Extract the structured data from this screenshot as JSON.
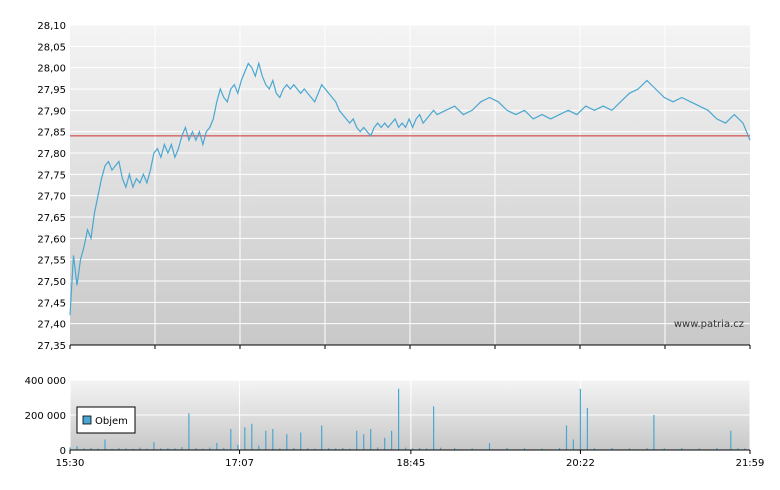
{
  "watermark": "www.patria.cz",
  "colors": {
    "price_line": "#4aa7d1",
    "reference_line": "#cc3333",
    "volume_bar": "#4aa7d1",
    "grid": "#ffffff",
    "plot_bg_top": "#f2f2f2",
    "plot_bg_bottom": "#c9c9c9",
    "axis": "#000000"
  },
  "chart_data": [
    {
      "type": "line",
      "name": "price",
      "ylim": [
        27.35,
        28.1
      ],
      "y_ticks": [
        "28,10",
        "28,05",
        "28,00",
        "27,95",
        "27,90",
        "27,85",
        "27,80",
        "27,75",
        "27,70",
        "27,65",
        "27,60",
        "27,55",
        "27,50",
        "27,45",
        "27,40",
        "27,35"
      ],
      "y_tick_values": [
        28.1,
        28.05,
        28.0,
        27.95,
        27.9,
        27.85,
        27.8,
        27.75,
        27.7,
        27.65,
        27.6,
        27.55,
        27.5,
        27.45,
        27.4,
        27.35
      ],
      "x_range": [
        "15:30",
        "21:59"
      ],
      "reference_value": 27.84,
      "grid": true,
      "points": [
        [
          "15:30",
          27.42
        ],
        [
          "15:32",
          27.56
        ],
        [
          "15:34",
          27.49
        ],
        [
          "15:36",
          27.55
        ],
        [
          "15:38",
          27.58
        ],
        [
          "15:40",
          27.62
        ],
        [
          "15:42",
          27.6
        ],
        [
          "15:44",
          27.66
        ],
        [
          "15:46",
          27.7
        ],
        [
          "15:48",
          27.74
        ],
        [
          "15:50",
          27.77
        ],
        [
          "15:52",
          27.78
        ],
        [
          "15:54",
          27.76
        ],
        [
          "15:56",
          27.77
        ],
        [
          "15:58",
          27.78
        ],
        [
          "16:00",
          27.74
        ],
        [
          "16:02",
          27.72
        ],
        [
          "16:04",
          27.75
        ],
        [
          "16:06",
          27.72
        ],
        [
          "16:08",
          27.74
        ],
        [
          "16:10",
          27.73
        ],
        [
          "16:12",
          27.75
        ],
        [
          "16:14",
          27.73
        ],
        [
          "16:16",
          27.76
        ],
        [
          "16:18",
          27.8
        ],
        [
          "16:20",
          27.81
        ],
        [
          "16:22",
          27.79
        ],
        [
          "16:24",
          27.82
        ],
        [
          "16:26",
          27.8
        ],
        [
          "16:28",
          27.82
        ],
        [
          "16:30",
          27.79
        ],
        [
          "16:32",
          27.81
        ],
        [
          "16:34",
          27.84
        ],
        [
          "16:36",
          27.86
        ],
        [
          "16:38",
          27.83
        ],
        [
          "16:40",
          27.85
        ],
        [
          "16:42",
          27.83
        ],
        [
          "16:44",
          27.85
        ],
        [
          "16:46",
          27.82
        ],
        [
          "16:48",
          27.85
        ],
        [
          "16:50",
          27.86
        ],
        [
          "16:52",
          27.88
        ],
        [
          "16:54",
          27.92
        ],
        [
          "16:56",
          27.95
        ],
        [
          "16:58",
          27.93
        ],
        [
          "17:00",
          27.92
        ],
        [
          "17:02",
          27.95
        ],
        [
          "17:04",
          27.96
        ],
        [
          "17:06",
          27.94
        ],
        [
          "17:08",
          27.97
        ],
        [
          "17:10",
          27.99
        ],
        [
          "17:12",
          28.01
        ],
        [
          "17:14",
          28.0
        ],
        [
          "17:16",
          27.98
        ],
        [
          "17:18",
          28.01
        ],
        [
          "17:20",
          27.98
        ],
        [
          "17:22",
          27.96
        ],
        [
          "17:24",
          27.95
        ],
        [
          "17:26",
          27.97
        ],
        [
          "17:28",
          27.94
        ],
        [
          "17:30",
          27.93
        ],
        [
          "17:32",
          27.95
        ],
        [
          "17:34",
          27.96
        ],
        [
          "17:36",
          27.95
        ],
        [
          "17:38",
          27.96
        ],
        [
          "17:40",
          27.95
        ],
        [
          "17:42",
          27.94
        ],
        [
          "17:44",
          27.95
        ],
        [
          "17:46",
          27.94
        ],
        [
          "17:48",
          27.93
        ],
        [
          "17:50",
          27.92
        ],
        [
          "17:52",
          27.94
        ],
        [
          "17:54",
          27.96
        ],
        [
          "17:56",
          27.95
        ],
        [
          "17:58",
          27.94
        ],
        [
          "18:00",
          27.93
        ],
        [
          "18:02",
          27.92
        ],
        [
          "18:04",
          27.9
        ],
        [
          "18:06",
          27.89
        ],
        [
          "18:08",
          27.88
        ],
        [
          "18:10",
          27.87
        ],
        [
          "18:12",
          27.88
        ],
        [
          "18:14",
          27.86
        ],
        [
          "18:16",
          27.85
        ],
        [
          "18:18",
          27.86
        ],
        [
          "18:20",
          27.85
        ],
        [
          "18:22",
          27.84
        ],
        [
          "18:24",
          27.86
        ],
        [
          "18:26",
          27.87
        ],
        [
          "18:28",
          27.86
        ],
        [
          "18:30",
          27.87
        ],
        [
          "18:32",
          27.86
        ],
        [
          "18:34",
          27.87
        ],
        [
          "18:36",
          27.88
        ],
        [
          "18:38",
          27.86
        ],
        [
          "18:40",
          27.87
        ],
        [
          "18:42",
          27.86
        ],
        [
          "18:44",
          27.88
        ],
        [
          "18:46",
          27.86
        ],
        [
          "18:48",
          27.88
        ],
        [
          "18:50",
          27.89
        ],
        [
          "18:52",
          27.87
        ],
        [
          "18:54",
          27.88
        ],
        [
          "18:56",
          27.89
        ],
        [
          "18:58",
          27.9
        ],
        [
          "19:00",
          27.89
        ],
        [
          "19:05",
          27.9
        ],
        [
          "19:10",
          27.91
        ],
        [
          "19:15",
          27.89
        ],
        [
          "19:20",
          27.9
        ],
        [
          "19:25",
          27.92
        ],
        [
          "19:30",
          27.93
        ],
        [
          "19:35",
          27.92
        ],
        [
          "19:40",
          27.9
        ],
        [
          "19:45",
          27.89
        ],
        [
          "19:50",
          27.9
        ],
        [
          "19:55",
          27.88
        ],
        [
          "20:00",
          27.89
        ],
        [
          "20:05",
          27.88
        ],
        [
          "20:10",
          27.89
        ],
        [
          "20:15",
          27.9
        ],
        [
          "20:20",
          27.89
        ],
        [
          "20:25",
          27.91
        ],
        [
          "20:30",
          27.9
        ],
        [
          "20:35",
          27.91
        ],
        [
          "20:40",
          27.9
        ],
        [
          "20:45",
          27.92
        ],
        [
          "20:50",
          27.94
        ],
        [
          "20:55",
          27.95
        ],
        [
          "21:00",
          27.97
        ],
        [
          "21:05",
          27.95
        ],
        [
          "21:10",
          27.93
        ],
        [
          "21:15",
          27.92
        ],
        [
          "21:20",
          27.93
        ],
        [
          "21:25",
          27.92
        ],
        [
          "21:30",
          27.91
        ],
        [
          "21:35",
          27.9
        ],
        [
          "21:40",
          27.88
        ],
        [
          "21:45",
          27.87
        ],
        [
          "21:50",
          27.89
        ],
        [
          "21:55",
          27.87
        ],
        [
          "21:59",
          27.83
        ]
      ]
    },
    {
      "type": "bar",
      "name": "volume",
      "legend": "Objem",
      "ylim": [
        0,
        400000
      ],
      "y_ticks": [
        "400 000",
        "200 000",
        "0"
      ],
      "y_tick_values": [
        400000,
        200000,
        0
      ],
      "x_ticks": [
        "15:30",
        "17:07",
        "18:45",
        "20:22",
        "21:59"
      ],
      "x_range": [
        "15:30",
        "21:59"
      ],
      "grid": true,
      "bars": [
        [
          "15:30",
          15000
        ],
        [
          "15:34",
          22000
        ],
        [
          "15:38",
          9000
        ],
        [
          "15:42",
          12000
        ],
        [
          "15:46",
          8000
        ],
        [
          "15:50",
          60000
        ],
        [
          "15:54",
          6000
        ],
        [
          "15:58",
          11000
        ],
        [
          "16:02",
          9000
        ],
        [
          "16:06",
          7000
        ],
        [
          "16:10",
          14000
        ],
        [
          "16:14",
          8000
        ],
        [
          "16:18",
          45000
        ],
        [
          "16:22",
          10000
        ],
        [
          "16:26",
          12000
        ],
        [
          "16:30",
          9000
        ],
        [
          "16:34",
          18000
        ],
        [
          "16:38",
          210000
        ],
        [
          "16:42",
          11000
        ],
        [
          "16:46",
          8000
        ],
        [
          "16:50",
          14000
        ],
        [
          "16:54",
          40000
        ],
        [
          "16:58",
          12000
        ],
        [
          "17:02",
          120000
        ],
        [
          "17:06",
          30000
        ],
        [
          "17:10",
          130000
        ],
        [
          "17:14",
          150000
        ],
        [
          "17:18",
          25000
        ],
        [
          "17:22",
          110000
        ],
        [
          "17:26",
          120000
        ],
        [
          "17:30",
          9000
        ],
        [
          "17:34",
          90000
        ],
        [
          "17:38",
          12000
        ],
        [
          "17:42",
          100000
        ],
        [
          "17:46",
          10000
        ],
        [
          "17:50",
          8000
        ],
        [
          "17:54",
          140000
        ],
        [
          "17:58",
          11000
        ],
        [
          "18:02",
          9000
        ],
        [
          "18:06",
          12000
        ],
        [
          "18:10",
          8000
        ],
        [
          "18:14",
          110000
        ],
        [
          "18:18",
          90000
        ],
        [
          "18:22",
          120000
        ],
        [
          "18:26",
          15000
        ],
        [
          "18:30",
          70000
        ],
        [
          "18:34",
          110000
        ],
        [
          "18:38",
          350000
        ],
        [
          "18:42",
          14000
        ],
        [
          "18:46",
          10000
        ],
        [
          "18:50",
          12000
        ],
        [
          "18:54",
          9000
        ],
        [
          "18:58",
          250000
        ],
        [
          "19:02",
          14000
        ],
        [
          "19:10",
          11000
        ],
        [
          "19:20",
          9000
        ],
        [
          "19:30",
          40000
        ],
        [
          "19:40",
          12000
        ],
        [
          "19:50",
          10000
        ],
        [
          "20:00",
          8000
        ],
        [
          "20:10",
          11000
        ],
        [
          "20:14",
          140000
        ],
        [
          "20:18",
          60000
        ],
        [
          "20:22",
          350000
        ],
        [
          "20:26",
          240000
        ],
        [
          "20:30",
          10000
        ],
        [
          "20:40",
          12000
        ],
        [
          "20:50",
          9000
        ],
        [
          "21:00",
          11000
        ],
        [
          "21:04",
          200000
        ],
        [
          "21:10",
          10000
        ],
        [
          "21:20",
          12000
        ],
        [
          "21:30",
          9000
        ],
        [
          "21:40",
          11000
        ],
        [
          "21:48",
          110000
        ],
        [
          "21:52",
          10000
        ],
        [
          "21:56",
          9000
        ]
      ]
    }
  ]
}
